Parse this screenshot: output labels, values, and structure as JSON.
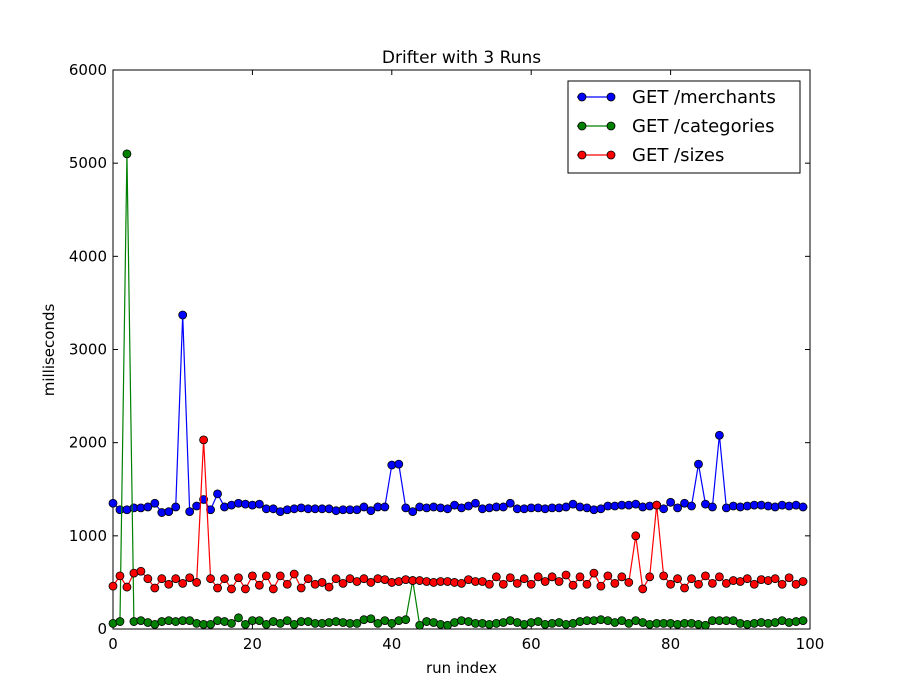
{
  "chart_data": {
    "type": "line",
    "title": "Drifter with 3 Runs",
    "xlabel": "run index",
    "ylabel": "milliseconds",
    "xlim": [
      0,
      100
    ],
    "ylim": [
      0,
      6000
    ],
    "xticks": [
      0,
      20,
      40,
      60,
      80,
      100
    ],
    "yticks": [
      0,
      1000,
      2000,
      3000,
      4000,
      5000,
      6000
    ],
    "grid": false,
    "legend_position": "top-right",
    "series": [
      {
        "name": "GET /merchants",
        "color": "#0000ff",
        "x_start": 0,
        "values": [
          1350,
          1280,
          1280,
          1300,
          1300,
          1310,
          1350,
          1250,
          1260,
          1310,
          3370,
          1260,
          1320,
          1390,
          1280,
          1450,
          1310,
          1330,
          1350,
          1340,
          1330,
          1340,
          1290,
          1290,
          1260,
          1280,
          1290,
          1300,
          1290,
          1290,
          1290,
          1290,
          1270,
          1280,
          1280,
          1280,
          1310,
          1270,
          1310,
          1310,
          1760,
          1770,
          1300,
          1260,
          1310,
          1300,
          1310,
          1300,
          1290,
          1330,
          1300,
          1320,
          1350,
          1290,
          1300,
          1310,
          1310,
          1350,
          1290,
          1290,
          1300,
          1300,
          1290,
          1300,
          1300,
          1310,
          1340,
          1310,
          1300,
          1280,
          1290,
          1320,
          1320,
          1330,
          1330,
          1340,
          1310,
          1320,
          1330,
          1290,
          1360,
          1300,
          1350,
          1320,
          1770,
          1340,
          1310,
          2080,
          1300,
          1320,
          1310,
          1320,
          1330,
          1330,
          1320,
          1310,
          1330,
          1320,
          1330,
          1310
        ]
      },
      {
        "name": "GET /categories",
        "color": "#008000",
        "x_start": 0,
        "values": [
          60,
          80,
          5100,
          80,
          90,
          70,
          50,
          80,
          90,
          80,
          90,
          90,
          60,
          50,
          50,
          90,
          80,
          60,
          120,
          50,
          90,
          90,
          50,
          80,
          60,
          90,
          50,
          80,
          80,
          60,
          60,
          70,
          80,
          70,
          60,
          60,
          100,
          110,
          60,
          90,
          60,
          90,
          100,
          520,
          40,
          80,
          70,
          50,
          40,
          70,
          90,
          80,
          60,
          60,
          50,
          60,
          70,
          90,
          70,
          50,
          70,
          80,
          50,
          60,
          70,
          50,
          60,
          80,
          90,
          90,
          100,
          90,
          70,
          90,
          60,
          90,
          70,
          50,
          60,
          60,
          60,
          50,
          60,
          60,
          50,
          40,
          90,
          90,
          90,
          90,
          60,
          50,
          60,
          70,
          60,
          70,
          90,
          70,
          80,
          90
        ]
      },
      {
        "name": "GET /sizes",
        "color": "#ff0000",
        "x_start": 0,
        "values": [
          460,
          570,
          450,
          600,
          620,
          540,
          440,
          540,
          480,
          540,
          490,
          550,
          500,
          2030,
          540,
          440,
          540,
          430,
          550,
          430,
          570,
          470,
          570,
          430,
          570,
          480,
          590,
          440,
          540,
          480,
          500,
          450,
          540,
          490,
          540,
          510,
          540,
          500,
          540,
          530,
          500,
          510,
          530,
          520,
          520,
          510,
          500,
          510,
          510,
          500,
          490,
          530,
          510,
          510,
          480,
          560,
          480,
          550,
          490,
          540,
          480,
          560,
          510,
          560,
          510,
          580,
          470,
          560,
          480,
          600,
          460,
          570,
          490,
          560,
          500,
          1000,
          430,
          560,
          1330,
          570,
          480,
          540,
          440,
          540,
          480,
          570,
          490,
          560,
          490,
          520,
          510,
          540,
          480,
          530,
          520,
          540,
          480,
          550,
          480,
          510
        ]
      }
    ]
  }
}
